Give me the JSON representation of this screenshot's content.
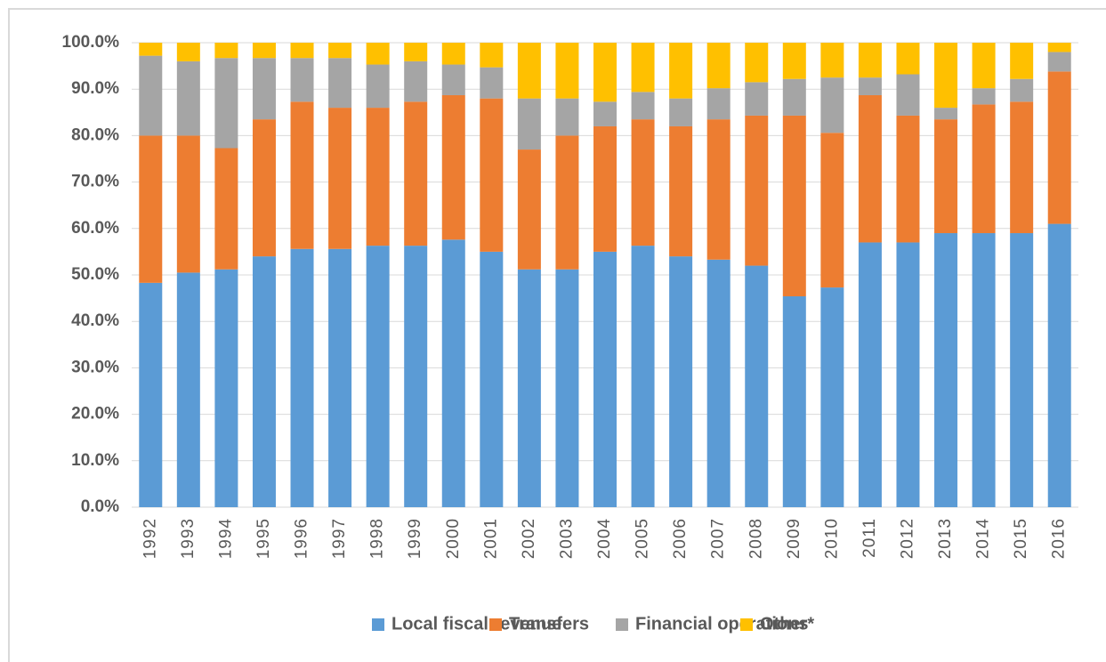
{
  "chart_data": {
    "type": "stacked_bar",
    "categories": [
      "1992",
      "1993",
      "1994",
      "1995",
      "1996",
      "1997",
      "1998",
      "1999",
      "2000",
      "2001",
      "2002",
      "2003",
      "2004",
      "2005",
      "2006",
      "2007",
      "2008",
      "2009",
      "2010",
      "2011",
      "2012",
      "2013",
      "2014",
      "2015",
      "2016"
    ],
    "series": [
      {
        "name": "Local fiscal revenue",
        "color": "#5b9bd5",
        "values": [
          48.3,
          50.5,
          51.2,
          54,
          55.6,
          55.6,
          56.3,
          56.3,
          57.6,
          55,
          51.2,
          51.2,
          55,
          56.3,
          54,
          53.3,
          52,
          45.4,
          47.3,
          57,
          57,
          59,
          59,
          59,
          61
        ]
      },
      {
        "name": "Transfers",
        "color": "#ed7d31",
        "values": [
          31.7,
          29.5,
          26.1,
          29.5,
          31.7,
          30.4,
          29.7,
          31,
          31.1,
          33,
          25.8,
          28.8,
          27,
          27.2,
          28,
          30.2,
          32.3,
          38.9,
          33.3,
          31.7,
          27.3,
          24.5,
          27.7,
          28.3,
          32.8
        ]
      },
      {
        "name": "Financial operations",
        "color": "#a5a5a5",
        "values": [
          17.2,
          16,
          19.4,
          13.2,
          9.4,
          10.7,
          9.3,
          8.7,
          6.6,
          6.7,
          11,
          8,
          5.3,
          5.9,
          6,
          6.7,
          7.2,
          7.9,
          11.9,
          3.8,
          8.9,
          2.5,
          3.5,
          4.9,
          4.2
        ]
      },
      {
        "name": "Other*",
        "color": "#ffc000",
        "values": [
          2.8,
          4,
          3.3,
          3.3,
          3.3,
          3.3,
          4.7,
          4,
          4.7,
          5.3,
          12,
          12,
          12.7,
          10.6,
          12,
          9.8,
          8.5,
          7.8,
          7.5,
          7.5,
          6.8,
          14,
          9.8,
          7.8,
          2
        ]
      }
    ],
    "ylim": [
      0,
      100
    ],
    "yticks": [
      {
        "value": 0,
        "label": "0.0%"
      },
      {
        "value": 10,
        "label": "10.0%"
      },
      {
        "value": 20,
        "label": "20.0%"
      },
      {
        "value": 30,
        "label": "30.0%"
      },
      {
        "value": 40,
        "label": "40.0%"
      },
      {
        "value": 50,
        "label": "50.0%"
      },
      {
        "value": 60,
        "label": "60.0%"
      },
      {
        "value": 70,
        "label": "70.0%"
      },
      {
        "value": 80,
        "label": "80.0%"
      },
      {
        "value": 90,
        "label": "90.0%"
      },
      {
        "value": 100,
        "label": "100.0%"
      }
    ],
    "grid": true,
    "legend": "bottom"
  }
}
